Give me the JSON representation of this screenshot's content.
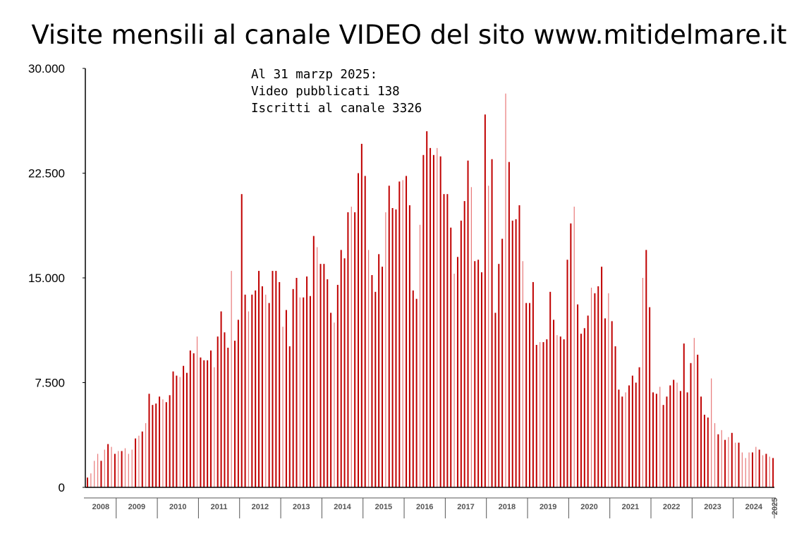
{
  "chart_data": {
    "type": "bar",
    "title": "Visite mensili al canale VIDEO del sito www.mitidelmare.it",
    "xlabel": "",
    "ylabel": "",
    "ylim": [
      0,
      30000
    ],
    "yticks": [
      0,
      7500,
      15000,
      22500,
      30000
    ],
    "ytick_labels": [
      "0",
      "7.500",
      "15.000",
      "22.500",
      "30.000"
    ],
    "annotation": [
      "Al 31 marzp 2025:",
      "Video pubblicati 138",
      "Iscritti al canale 3326"
    ],
    "grid": false,
    "legend": "none",
    "colors": {
      "dark": "#c00000",
      "light": "#e87878"
    },
    "year_labels": [
      "2008",
      "2009",
      "2010",
      "2011",
      "2012",
      "2013",
      "2014",
      "2015",
      "2016",
      "2017",
      "2018",
      "2019",
      "2020",
      "2021",
      "2022",
      "2023",
      "2024",
      "2025"
    ],
    "first_year": 2008,
    "first_month": 4,
    "values": [
      700,
      1000,
      1900,
      2400,
      1900,
      2700,
      3100,
      2900,
      2400,
      2600,
      2600,
      2800,
      2400,
      2700,
      3500,
      3700,
      4000,
      4600,
      6700,
      5900,
      6000,
      6500,
      6300,
      6100,
      6600,
      8300,
      8000,
      7900,
      8700,
      8200,
      9800,
      9600,
      10800,
      9300,
      9100,
      9100,
      9800,
      8600,
      10800,
      12600,
      11100,
      10000,
      15500,
      10500,
      12000,
      21000,
      13800,
      12600,
      13800,
      14100,
      15500,
      14400,
      13800,
      13200,
      15500,
      15500,
      14700,
      11500,
      12700,
      10100,
      14200,
      15000,
      13600,
      13600,
      15100,
      13700,
      18000,
      17200,
      16000,
      16000,
      14900,
      12500,
      11800,
      14500,
      17000,
      16400,
      19700,
      20100,
      19700,
      22500,
      24600,
      22300,
      17000,
      15200,
      14000,
      16700,
      15800,
      19700,
      21600,
      20000,
      19900,
      21900,
      22000,
      22300,
      20200,
      14100,
      13500,
      18800,
      23800,
      25500,
      24300,
      23800,
      24300,
      23700,
      21000,
      21000,
      18600,
      15300,
      16500,
      19100,
      20500,
      23400,
      21500,
      16200,
      16300,
      15400,
      26700,
      21600,
      23500,
      12500,
      16000,
      17800,
      28200,
      23300,
      19100,
      19200,
      20200,
      16200,
      13200,
      13200,
      14700,
      10200,
      10400,
      10400,
      10600,
      14000,
      12000,
      10900,
      10800,
      10600,
      16300,
      18900,
      20100,
      13100,
      11000,
      11400,
      12300,
      14300,
      13900,
      14400,
      15800,
      12100,
      13900,
      11900,
      10100,
      7000,
      6500,
      6800,
      7300,
      8000,
      7500,
      8600,
      15000,
      17000,
      12900,
      6800,
      6700,
      7200,
      5900,
      6500,
      7300,
      7700,
      7500,
      6900,
      10300,
      6800,
      8900,
      10700,
      9500,
      6500,
      5200,
      5000,
      7800,
      4600,
      3800,
      4100,
      3400,
      3600,
      3900,
      3200,
      3200,
      2500,
      2100,
      2500,
      2500,
      2900,
      2700,
      2300,
      2400,
      2200,
      2100
    ]
  }
}
